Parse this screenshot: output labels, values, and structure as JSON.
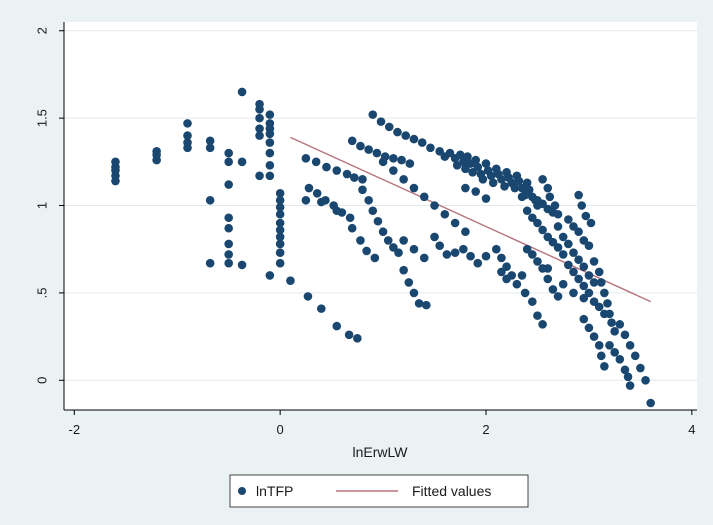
{
  "chart_data": {
    "type": "scatter",
    "title": "",
    "xlabel": "lnErwLW",
    "ylabel": "",
    "xlim": [
      -2.1,
      4.05
    ],
    "ylim": [
      -0.17,
      2.05
    ],
    "x_ticks": [
      -2,
      0,
      2,
      4
    ],
    "y_ticks": [
      0,
      0.5,
      1,
      1.5,
      2
    ],
    "x_tick_labels": [
      "-2",
      "0",
      "2",
      "4"
    ],
    "y_tick_labels": [
      "0",
      ".5",
      "1",
      "1.5",
      "2"
    ],
    "grid": true,
    "legend_position": "bottom-center",
    "colors": {
      "background": "#eaf2f3",
      "plot_area": "#ffffff",
      "gridline": "#e2e9ea",
      "marker": "#1a476f",
      "fit_line": "#b5737c"
    },
    "series": [
      {
        "name": "lnTFP",
        "kind": "scatter",
        "points": [
          [
            -1.6,
            1.25
          ],
          [
            -1.6,
            1.22
          ],
          [
            -1.6,
            1.2
          ],
          [
            -1.6,
            1.17
          ],
          [
            -1.6,
            1.14
          ],
          [
            -1.2,
            1.31
          ],
          [
            -1.2,
            1.29
          ],
          [
            -1.2,
            1.26
          ],
          [
            -0.9,
            1.47
          ],
          [
            -0.9,
            1.4
          ],
          [
            -0.9,
            1.36
          ],
          [
            -0.9,
            1.33
          ],
          [
            -0.68,
            1.37
          ],
          [
            -0.68,
            1.33
          ],
          [
            -0.68,
            1.03
          ],
          [
            -0.68,
            0.67
          ],
          [
            -0.5,
            1.3
          ],
          [
            -0.5,
            1.25
          ],
          [
            -0.5,
            1.12
          ],
          [
            -0.5,
            0.93
          ],
          [
            -0.5,
            0.87
          ],
          [
            -0.5,
            0.78
          ],
          [
            -0.5,
            0.72
          ],
          [
            -0.5,
            0.67
          ],
          [
            -0.37,
            1.65
          ],
          [
            -0.37,
            0.66
          ],
          [
            -0.37,
            1.25
          ],
          [
            -0.2,
            1.58
          ],
          [
            -0.2,
            1.55
          ],
          [
            -0.2,
            1.5
          ],
          [
            -0.2,
            1.44
          ],
          [
            -0.2,
            1.4
          ],
          [
            -0.2,
            1.17
          ],
          [
            -0.1,
            1.52
          ],
          [
            -0.1,
            1.47
          ],
          [
            -0.1,
            1.44
          ],
          [
            -0.1,
            1.41
          ],
          [
            -0.1,
            1.36
          ],
          [
            -0.1,
            1.3
          ],
          [
            -0.1,
            1.23
          ],
          [
            -0.1,
            1.17
          ],
          [
            -0.1,
            0.6
          ],
          [
            0.0,
            1.07
          ],
          [
            0.0,
            1.03
          ],
          [
            0.0,
            0.99
          ],
          [
            0.0,
            0.95
          ],
          [
            0.0,
            0.9
          ],
          [
            0.0,
            0.86
          ],
          [
            0.0,
            0.82
          ],
          [
            0.0,
            0.78
          ],
          [
            0.0,
            0.73
          ],
          [
            0.0,
            0.67
          ],
          [
            0.1,
            0.57
          ],
          [
            0.27,
            0.48
          ],
          [
            0.4,
            0.41
          ],
          [
            0.55,
            0.31
          ],
          [
            0.67,
            0.26
          ],
          [
            0.75,
            0.24
          ],
          [
            0.25,
            1.27
          ],
          [
            0.35,
            1.25
          ],
          [
            0.45,
            1.22
          ],
          [
            0.55,
            1.2
          ],
          [
            0.65,
            1.18
          ],
          [
            0.72,
            1.16
          ],
          [
            0.8,
            1.15
          ],
          [
            0.9,
            1.52
          ],
          [
            0.98,
            1.48
          ],
          [
            1.06,
            1.45
          ],
          [
            1.14,
            1.42
          ],
          [
            1.22,
            1.4
          ],
          [
            1.3,
            1.38
          ],
          [
            1.38,
            1.36
          ],
          [
            1.46,
            1.33
          ],
          [
            0.7,
            1.37
          ],
          [
            0.78,
            1.34
          ],
          [
            0.86,
            1.32
          ],
          [
            0.94,
            1.3
          ],
          [
            1.02,
            1.28
          ],
          [
            1.1,
            1.27
          ],
          [
            1.18,
            1.26
          ],
          [
            1.26,
            1.24
          ],
          [
            1.55,
            1.31
          ],
          [
            1.6,
            1.28
          ],
          [
            1.65,
            1.3
          ],
          [
            1.7,
            1.27
          ],
          [
            1.72,
            1.23
          ],
          [
            1.75,
            1.29
          ],
          [
            1.78,
            1.25
          ],
          [
            1.8,
            1.21
          ],
          [
            1.82,
            1.28
          ],
          [
            1.85,
            1.24
          ],
          [
            1.87,
            1.19
          ],
          [
            1.9,
            1.26
          ],
          [
            1.92,
            1.22
          ],
          [
            1.95,
            1.18
          ],
          [
            1.97,
            1.15
          ],
          [
            2.0,
            1.24
          ],
          [
            2.02,
            1.2
          ],
          [
            2.05,
            1.17
          ],
          [
            2.07,
            1.13
          ],
          [
            2.1,
            1.21
          ],
          [
            2.12,
            1.18
          ],
          [
            2.15,
            1.15
          ],
          [
            2.18,
            1.11
          ],
          [
            2.2,
            1.19
          ],
          [
            2.22,
            1.16
          ],
          [
            2.25,
            1.13
          ],
          [
            2.28,
            1.1
          ],
          [
            2.3,
            1.17
          ],
          [
            2.32,
            1.14
          ],
          [
            2.35,
            1.1
          ],
          [
            2.38,
            1.06
          ],
          [
            2.4,
            1.13
          ],
          [
            2.42,
            1.09
          ],
          [
            2.45,
            1.05
          ],
          [
            2.48,
            1.03
          ],
          [
            2.5,
            1.0
          ],
          [
            2.55,
            1.01
          ],
          [
            2.6,
            0.98
          ],
          [
            2.65,
            0.96
          ],
          [
            1.8,
            1.1
          ],
          [
            1.9,
            1.08
          ],
          [
            2.0,
            1.04
          ],
          [
            0.28,
            1.1
          ],
          [
            0.36,
            1.07
          ],
          [
            0.44,
            1.03
          ],
          [
            0.52,
            1.0
          ],
          [
            0.6,
            0.96
          ],
          [
            0.68,
            0.93
          ],
          [
            0.8,
            1.09
          ],
          [
            0.86,
            1.03
          ],
          [
            0.9,
            0.97
          ],
          [
            0.95,
            0.91
          ],
          [
            1.0,
            0.85
          ],
          [
            1.05,
            0.8
          ],
          [
            1.1,
            0.76
          ],
          [
            1.15,
            0.73
          ],
          [
            0.25,
            1.03
          ],
          [
            0.4,
            1.02
          ],
          [
            0.55,
            0.97
          ],
          [
            0.7,
            0.87
          ],
          [
            0.78,
            0.8
          ],
          [
            0.84,
            0.74
          ],
          [
            0.92,
            0.7
          ],
          [
            1.0,
            1.25
          ],
          [
            1.1,
            1.2
          ],
          [
            1.2,
            1.15
          ],
          [
            1.3,
            1.1
          ],
          [
            1.4,
            1.05
          ],
          [
            1.5,
            1.0
          ],
          [
            1.6,
            0.95
          ],
          [
            1.7,
            0.9
          ],
          [
            1.8,
            0.85
          ],
          [
            1.2,
            0.63
          ],
          [
            1.25,
            0.56
          ],
          [
            1.3,
            0.5
          ],
          [
            1.35,
            0.44
          ],
          [
            1.42,
            0.43
          ],
          [
            1.2,
            0.8
          ],
          [
            1.3,
            0.75
          ],
          [
            1.4,
            0.7
          ],
          [
            1.5,
            0.82
          ],
          [
            1.55,
            0.77
          ],
          [
            1.62,
            0.72
          ],
          [
            1.7,
            0.73
          ],
          [
            1.78,
            0.75
          ],
          [
            1.85,
            0.71
          ],
          [
            1.92,
            0.67
          ],
          [
            2.0,
            0.71
          ],
          [
            2.1,
            0.75
          ],
          [
            2.15,
            0.7
          ],
          [
            2.2,
            0.65
          ],
          [
            2.25,
            0.6
          ],
          [
            2.3,
            0.55
          ],
          [
            2.38,
            0.5
          ],
          [
            2.45,
            0.45
          ],
          [
            2.5,
            0.37
          ],
          [
            2.55,
            0.32
          ],
          [
            2.4,
            0.75
          ],
          [
            2.45,
            0.72
          ],
          [
            2.5,
            0.68
          ],
          [
            2.55,
            0.64
          ],
          [
            2.6,
            0.58
          ],
          [
            2.65,
            0.52
          ],
          [
            2.7,
            0.48
          ],
          [
            2.4,
            0.97
          ],
          [
            2.45,
            0.93
          ],
          [
            2.5,
            0.9
          ],
          [
            2.55,
            0.86
          ],
          [
            2.6,
            0.82
          ],
          [
            2.65,
            0.79
          ],
          [
            2.7,
            0.76
          ],
          [
            2.75,
            0.72
          ],
          [
            2.35,
            1.05
          ],
          [
            2.5,
            1.03
          ],
          [
            2.7,
            0.95
          ],
          [
            2.8,
            0.92
          ],
          [
            2.85,
            0.88
          ],
          [
            2.9,
            0.85
          ],
          [
            2.95,
            0.8
          ],
          [
            3.0,
            0.77
          ],
          [
            2.7,
            0.88
          ],
          [
            2.75,
            0.82
          ],
          [
            2.8,
            0.78
          ],
          [
            2.85,
            0.73
          ],
          [
            2.9,
            0.69
          ],
          [
            2.95,
            0.65
          ],
          [
            3.0,
            0.6
          ],
          [
            3.05,
            0.56
          ],
          [
            2.8,
            0.66
          ],
          [
            2.85,
            0.62
          ],
          [
            2.9,
            0.58
          ],
          [
            2.95,
            0.54
          ],
          [
            3.0,
            0.5
          ],
          [
            3.05,
            0.45
          ],
          [
            3.1,
            0.42
          ],
          [
            3.15,
            0.38
          ],
          [
            3.05,
            0.68
          ],
          [
            3.1,
            0.62
          ],
          [
            3.12,
            0.56
          ],
          [
            3.15,
            0.5
          ],
          [
            3.18,
            0.44
          ],
          [
            3.2,
            0.38
          ],
          [
            3.22,
            0.33
          ],
          [
            3.25,
            0.28
          ],
          [
            2.95,
            0.35
          ],
          [
            3.0,
            0.3
          ],
          [
            3.05,
            0.25
          ],
          [
            3.1,
            0.2
          ],
          [
            3.12,
            0.14
          ],
          [
            3.15,
            0.08
          ],
          [
            3.2,
            0.2
          ],
          [
            3.25,
            0.16
          ],
          [
            3.3,
            0.12
          ],
          [
            3.35,
            0.06
          ],
          [
            3.38,
            0.02
          ],
          [
            3.4,
            -0.03
          ],
          [
            3.3,
            0.32
          ],
          [
            3.35,
            0.26
          ],
          [
            3.4,
            0.2
          ],
          [
            3.45,
            0.14
          ],
          [
            3.5,
            0.07
          ],
          [
            3.55,
            0.0
          ],
          [
            3.6,
            -0.13
          ],
          [
            2.55,
            1.15
          ],
          [
            2.6,
            1.1
          ],
          [
            2.62,
            1.05
          ],
          [
            2.67,
            1.0
          ],
          [
            2.9,
            1.06
          ],
          [
            2.93,
            1.0
          ],
          [
            2.97,
            0.94
          ],
          [
            3.02,
            0.9
          ],
          [
            2.2,
            0.58
          ],
          [
            2.15,
            0.62
          ],
          [
            2.35,
            0.6
          ],
          [
            2.6,
            0.64
          ],
          [
            2.75,
            0.55
          ],
          [
            2.85,
            0.5
          ],
          [
            2.95,
            0.47
          ]
        ]
      },
      {
        "name": "Fitted values",
        "kind": "line",
        "points": [
          [
            0.1,
            1.39
          ],
          [
            3.6,
            0.45
          ]
        ]
      }
    ]
  }
}
